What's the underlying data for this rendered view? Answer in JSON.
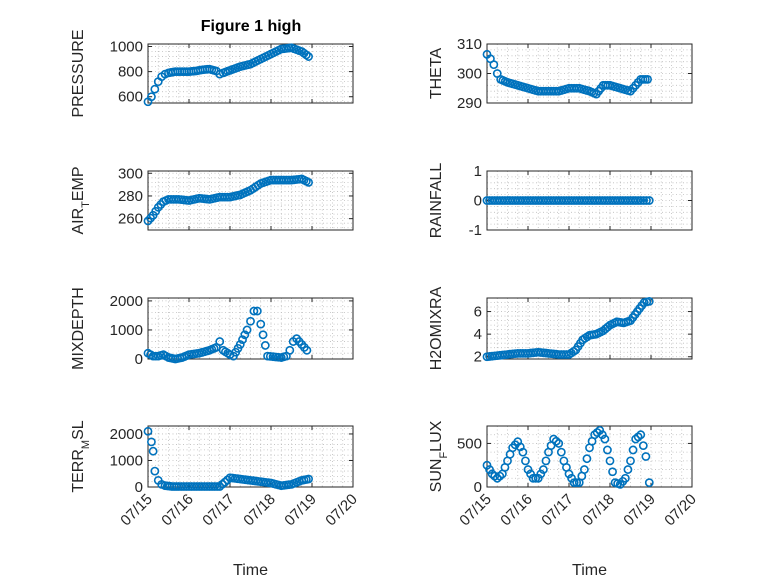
{
  "figure": {
    "title": "Figure 1 high"
  },
  "chart_data": [
    {
      "type": "scatter",
      "id": "pressure",
      "ylabel": "PRESSURE",
      "xlim": [
        "07/15",
        "07/20"
      ],
      "ylim": [
        550,
        1020
      ],
      "yticks": [
        "600",
        "800",
        "1000"
      ],
      "ytick_values": [
        600,
        800,
        1000
      ],
      "xticks": [
        "07/15",
        "07/16",
        "07/17",
        "07/18",
        "07/19",
        "07/20"
      ],
      "xlabel": "",
      "grid": true,
      "x": [
        "07/15 00:00",
        "07/15 02:00",
        "07/15 04:00",
        "07/15 06:00",
        "07/15 08:00",
        "07/15 10:00",
        "07/15 12:00",
        "07/15 16:00",
        "07/15 20:00",
        "07/16 00:00",
        "07/16 04:00",
        "07/16 08:00",
        "07/16 12:00",
        "07/16 16:00",
        "07/16 18:00",
        "07/16 20:00",
        "07/17 00:00",
        "07/17 06:00",
        "07/17 12:00",
        "07/17 18:00",
        "07/18 00:00",
        "07/18 06:00",
        "07/18 12:00",
        "07/18 18:00",
        "07/18 22:00"
      ],
      "y": [
        560,
        600,
        660,
        720,
        760,
        780,
        790,
        800,
        800,
        800,
        805,
        815,
        820,
        805,
        780,
        790,
        810,
        840,
        860,
        900,
        940,
        980,
        990,
        960,
        920
      ]
    },
    {
      "type": "scatter",
      "id": "theta",
      "ylabel": "THETA",
      "xlim": [
        "07/15",
        "07/20"
      ],
      "ylim": [
        290,
        310
      ],
      "yticks": [
        "290",
        "300",
        "310"
      ],
      "ytick_values": [
        290,
        300,
        310
      ],
      "xticks": [
        "07/15",
        "07/16",
        "07/17",
        "07/18",
        "07/19",
        "07/20"
      ],
      "xlabel": "",
      "grid": true,
      "x": [
        "07/15 00:00",
        "07/15 02:00",
        "07/15 04:00",
        "07/15 06:00",
        "07/15 08:00",
        "07/15 12:00",
        "07/15 18:00",
        "07/16 00:00",
        "07/16 06:00",
        "07/16 12:00",
        "07/16 18:00",
        "07/17 00:00",
        "07/17 06:00",
        "07/17 12:00",
        "07/17 16:00",
        "07/17 20:00",
        "07/18 00:00",
        "07/18 06:00",
        "07/18 12:00",
        "07/18 18:00",
        "07/18 22:00"
      ],
      "y": [
        306.5,
        305,
        303,
        300,
        298,
        297,
        296,
        295,
        294,
        294,
        294,
        295,
        295,
        294,
        293,
        296,
        296,
        295,
        294,
        298,
        298
      ]
    },
    {
      "type": "scatter",
      "id": "air_temp",
      "ylabel": "AIR_TEMP",
      "xlim": [
        "07/15",
        "07/20"
      ],
      "ylim": [
        250,
        302
      ],
      "yticks": [
        "260",
        "280",
        "300"
      ],
      "ytick_values": [
        260,
        280,
        300
      ],
      "xticks": [
        "07/15",
        "07/16",
        "07/17",
        "07/18",
        "07/19",
        "07/20"
      ],
      "xlabel": "",
      "grid": true,
      "x": [
        "07/15 00:00",
        "07/15 03:00",
        "07/15 06:00",
        "07/15 09:00",
        "07/15 12:00",
        "07/15 18:00",
        "07/16 00:00",
        "07/16 06:00",
        "07/16 12:00",
        "07/16 18:00",
        "07/17 00:00",
        "07/17 06:00",
        "07/17 12:00",
        "07/17 18:00",
        "07/18 00:00",
        "07/18 06:00",
        "07/18 12:00",
        "07/18 18:00",
        "07/18 22:00"
      ],
      "y": [
        258,
        263,
        270,
        275,
        277,
        277,
        276,
        278,
        277,
        279,
        279,
        281,
        285,
        291,
        294,
        294,
        294,
        295,
        292
      ]
    },
    {
      "type": "scatter",
      "id": "rainfall",
      "ylabel": "RAINFALL",
      "xlim": [
        "07/15",
        "07/20"
      ],
      "ylim": [
        -1,
        1
      ],
      "yticks": [
        "-1",
        "0",
        "1"
      ],
      "ytick_values": [
        -1,
        0,
        1
      ],
      "xticks": [
        "07/15",
        "07/16",
        "07/17",
        "07/18",
        "07/19",
        "07/20"
      ],
      "xlabel": "",
      "grid": true,
      "x": [
        "07/15 00:00",
        "07/15 06:00",
        "07/15 12:00",
        "07/15 18:00",
        "07/16 00:00",
        "07/16 06:00",
        "07/16 12:00",
        "07/16 18:00",
        "07/17 00:00",
        "07/17 06:00",
        "07/17 12:00",
        "07/17 18:00",
        "07/18 00:00",
        "07/18 06:00",
        "07/18 12:00",
        "07/18 18:00",
        "07/18 23:00"
      ],
      "y": [
        0,
        0,
        0,
        0,
        0,
        0,
        0,
        0,
        0,
        0,
        0,
        0,
        0,
        0,
        0,
        0,
        0
      ]
    },
    {
      "type": "scatter",
      "id": "mixdepth",
      "ylabel": "MIXDEPTH",
      "xlim": [
        "07/15",
        "07/20"
      ],
      "ylim": [
        0,
        2100
      ],
      "yticks": [
        "0",
        "1000",
        "2000"
      ],
      "ytick_values": [
        0,
        1000,
        2000
      ],
      "xticks": [
        "07/15",
        "07/16",
        "07/17",
        "07/18",
        "07/19",
        "07/20"
      ],
      "xlabel": "",
      "grid": true,
      "x": [
        "07/15 00:00",
        "07/15 03:00",
        "07/15 06:00",
        "07/15 09:00",
        "07/15 12:00",
        "07/15 16:00",
        "07/15 20:00",
        "07/16 00:00",
        "07/16 06:00",
        "07/16 12:00",
        "07/16 16:00",
        "07/16 18:00",
        "07/16 20:00",
        "07/17 00:00",
        "07/17 02:00",
        "07/17 06:00",
        "07/17 10:00",
        "07/17 12:00",
        "07/17 14:00",
        "07/17 16:00",
        "07/17 18:00",
        "07/17 22:00",
        "07/18 06:00",
        "07/18 09:00",
        "07/18 11:00",
        "07/18 13:00",
        "07/18 15:00",
        "07/18 18:00",
        "07/18 21:00"
      ],
      "y": [
        200,
        100,
        100,
        150,
        50,
        0,
        50,
        150,
        200,
        300,
        400,
        600,
        300,
        150,
        100,
        500,
        1000,
        1300,
        1650,
        1650,
        1200,
        100,
        50,
        100,
        300,
        600,
        700,
        500,
        300
      ]
    },
    {
      "type": "scatter",
      "id": "h2omixra",
      "ylabel": "H2OMIXRA",
      "xlim": [
        "07/15",
        "07/20"
      ],
      "ylim": [
        1.8,
        7.2
      ],
      "yticks": [
        "2",
        "4",
        "6"
      ],
      "ytick_values": [
        2,
        4,
        6
      ],
      "xticks": [
        "07/15",
        "07/16",
        "07/17",
        "07/18",
        "07/19",
        "07/20"
      ],
      "xlabel": "",
      "grid": true,
      "x": [
        "07/15 00:00",
        "07/15 06:00",
        "07/15 12:00",
        "07/15 18:00",
        "07/16 00:00",
        "07/16 06:00",
        "07/16 12:00",
        "07/16 18:00",
        "07/17 00:00",
        "07/17 04:00",
        "07/17 08:00",
        "07/17 12:00",
        "07/17 16:00",
        "07/17 20:00",
        "07/18 00:00",
        "07/18 04:00",
        "07/18 08:00",
        "07/18 12:00",
        "07/18 16:00",
        "07/18 20:00",
        "07/18 23:00"
      ],
      "y": [
        2,
        2.1,
        2.2,
        2.3,
        2.3,
        2.4,
        2.3,
        2.2,
        2.2,
        2.6,
        3.5,
        3.9,
        4,
        4.3,
        4.8,
        5.1,
        5,
        5.2,
        6,
        6.8,
        6.9
      ]
    },
    {
      "type": "scatter",
      "id": "terr_msl",
      "ylabel": "TERR_MSL",
      "xlim": [
        "07/15",
        "07/20"
      ],
      "ylim": [
        0,
        2300
      ],
      "yticks": [
        "0",
        "1000",
        "2000"
      ],
      "ytick_values": [
        0,
        1000,
        2000
      ],
      "xticks": [
        "07/15",
        "07/16",
        "07/17",
        "07/18",
        "07/19",
        "07/20"
      ],
      "xlabel": "Time",
      "grid": true,
      "x": [
        "07/15 00:00",
        "07/15 02:00",
        "07/15 03:00",
        "07/15 04:00",
        "07/15 06:00",
        "07/15 08:00",
        "07/15 10:00",
        "07/15 14:00",
        "07/15 18:00",
        "07/16 00:00",
        "07/16 06:00",
        "07/16 12:00",
        "07/16 18:00",
        "07/17 00:00",
        "07/17 06:00",
        "07/17 12:00",
        "07/17 18:00",
        "07/18 00:00",
        "07/18 06:00",
        "07/18 12:00",
        "07/18 18:00",
        "07/18 22:00"
      ],
      "y": [
        2100,
        1700,
        1350,
        600,
        250,
        100,
        50,
        20,
        20,
        20,
        20,
        20,
        20,
        350,
        300,
        250,
        200,
        150,
        50,
        100,
        250,
        300
      ]
    },
    {
      "type": "scatter",
      "id": "sun_flux",
      "ylabel": "SUN_FLUX",
      "xlim": [
        "07/15",
        "07/20"
      ],
      "ylim": [
        0,
        700
      ],
      "yticks": [
        "0",
        "500"
      ],
      "ytick_values": [
        0,
        500
      ],
      "xticks": [
        "07/15",
        "07/16",
        "07/17",
        "07/18",
        "07/19",
        "07/20"
      ],
      "xlabel": "Time",
      "grid": true,
      "x": [
        "07/15 00:00",
        "07/15 03:00",
        "07/15 06:00",
        "07/15 09:00",
        "07/15 12:00",
        "07/15 15:00",
        "07/15 18:00",
        "07/15 21:00",
        "07/16 00:00",
        "07/16 03:00",
        "07/16 06:00",
        "07/16 09:00",
        "07/16 12:00",
        "07/16 15:00",
        "07/16 18:00",
        "07/16 21:00",
        "07/17 00:00",
        "07/17 03:00",
        "07/17 06:00",
        "07/17 09:00",
        "07/17 12:00",
        "07/17 15:00",
        "07/17 18:00",
        "07/17 21:00",
        "07/18 00:00",
        "07/18 03:00",
        "07/18 06:00",
        "07/18 09:00",
        "07/18 12:00",
        "07/18 15:00",
        "07/18 18:00",
        "07/18 21:00",
        "07/18 23:00"
      ],
      "y": [
        250,
        150,
        100,
        150,
        300,
        450,
        520,
        400,
        200,
        100,
        100,
        200,
        400,
        550,
        500,
        300,
        150,
        50,
        50,
        200,
        450,
        600,
        650,
        550,
        300,
        50,
        30,
        100,
        300,
        550,
        600,
        350,
        50
      ]
    }
  ]
}
